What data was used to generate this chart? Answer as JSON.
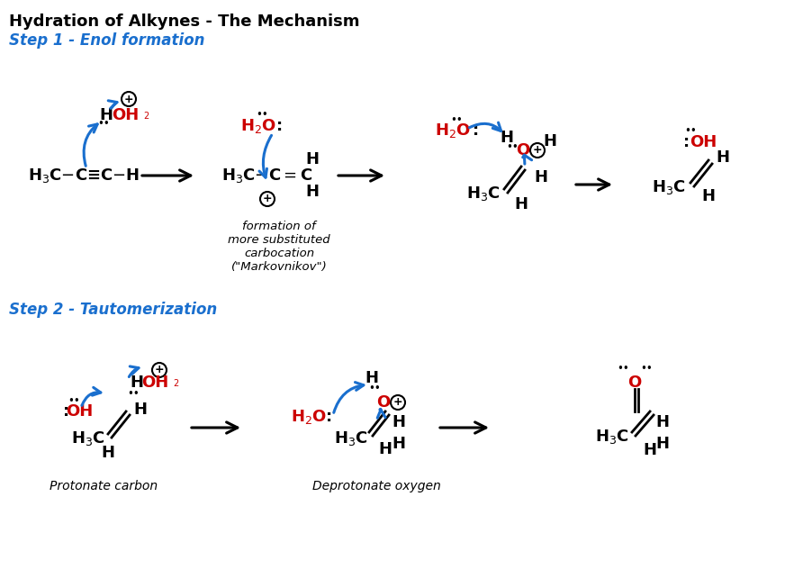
{
  "title": "Hydration of Alkynes - The Mechanism",
  "step1_label": "Step 1 - Enol formation",
  "step2_label": "Step 2 - Tautomerization",
  "bg_color": "#ffffff",
  "text_color": "#000000",
  "blue_color": "#1a6fce",
  "red_color": "#cc0000",
  "label_protonate": "Protonate carbon",
  "label_deprotonate": "Deprotonate oxygen",
  "label_markovnikov": "formation of\nmore substituted\ncarbocation\n(\"Markovnikov\")",
  "title_fs": 13,
  "step_fs": 12,
  "mol_fs": 13,
  "ann_fs": 9.5,
  "fig_w": 8.72,
  "fig_h": 6.32,
  "dpi": 100
}
